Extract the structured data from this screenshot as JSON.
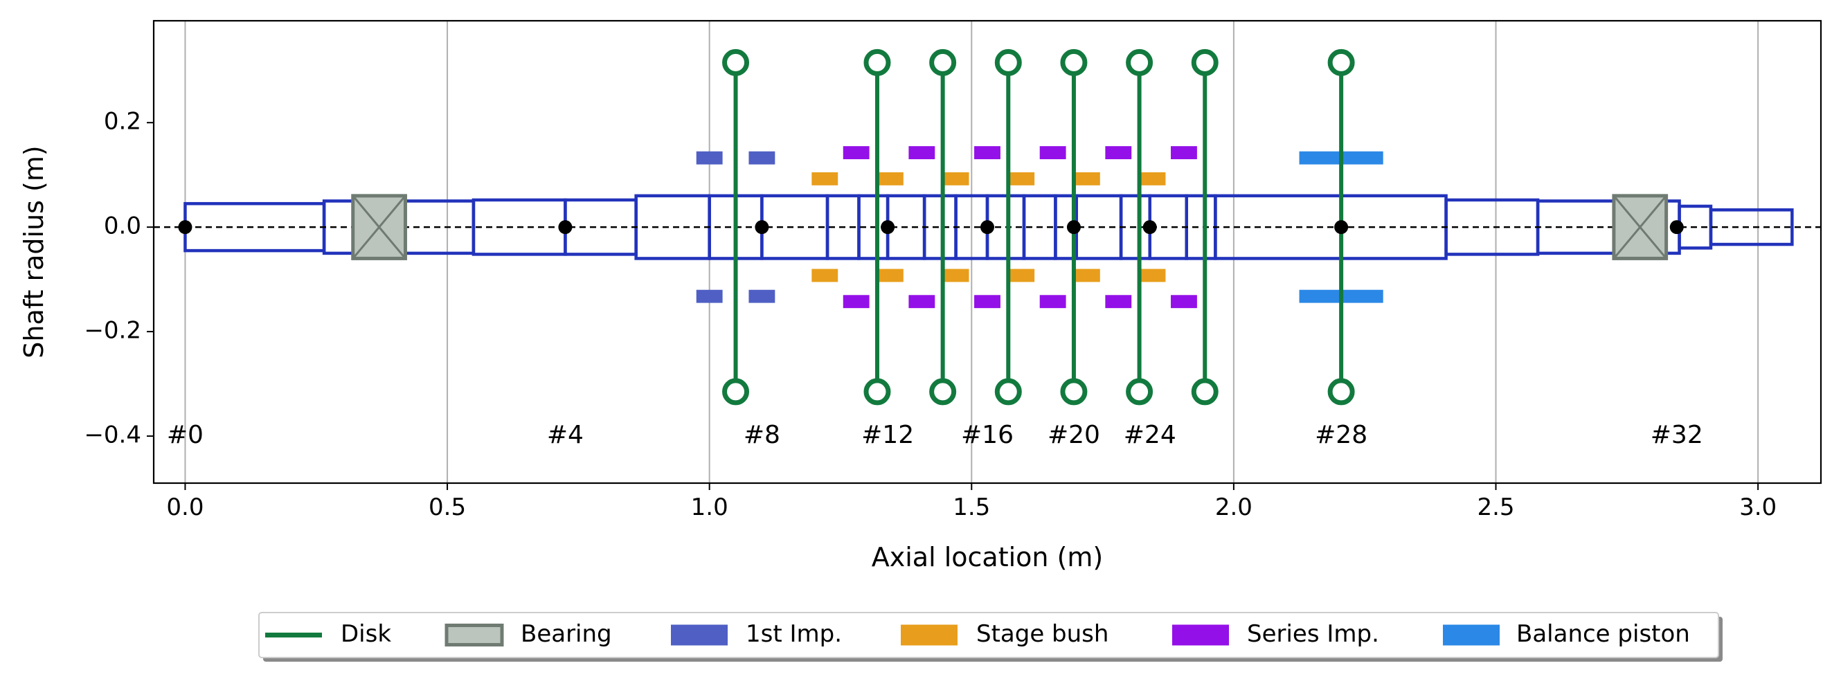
{
  "chart_data": {
    "type": "diagram",
    "xlabel": "Axial location (m)",
    "ylabel": "Shaft radius (m)",
    "xlim": [
      -0.06,
      3.12
    ],
    "ylim": [
      -0.49,
      0.395
    ],
    "x_ticks": [
      0.0,
      0.5,
      1.0,
      1.5,
      2.0,
      2.5,
      3.0
    ],
    "x_tick_labels": [
      "0.0",
      "0.5",
      "1.0",
      "1.5",
      "2.0",
      "2.5",
      "3.0"
    ],
    "y_ticks": [
      0.2,
      0.0,
      -0.2,
      -0.4
    ],
    "y_tick_labels": [
      "0.2",
      "0.0",
      "−0.2",
      "−0.4"
    ],
    "grid": "vertical",
    "colors": {
      "shaft": "#2233bb",
      "disk": "#127a3e",
      "bearing_fill": "#bcc4be",
      "bearing_edge": "#6f7b72",
      "first_imp": "#4f5fc4",
      "stage_bush": "#e89e1c",
      "series_imp": "#9410e8",
      "balance_piston": "#2b88e6",
      "node": "#000000"
    },
    "shaft_elements": [
      {
        "x0": 0.0,
        "x1": 0.265,
        "r": 0.045
      },
      {
        "x0": 0.265,
        "x1": 0.55,
        "r": 0.05
      },
      {
        "x0": 0.55,
        "x1": 0.725,
        "r": 0.052
      },
      {
        "x0": 0.725,
        "x1": 0.86,
        "r": 0.052
      },
      {
        "x0": 0.86,
        "x1": 1.0,
        "r": 0.06
      },
      {
        "x0": 1.0,
        "x1": 1.1,
        "r": 0.06
      },
      {
        "x0": 1.1,
        "x1": 1.225,
        "r": 0.06
      },
      {
        "x0": 1.225,
        "x1": 1.285,
        "r": 0.06
      },
      {
        "x0": 1.285,
        "x1": 1.34,
        "r": 0.06
      },
      {
        "x0": 1.34,
        "x1": 1.41,
        "r": 0.06
      },
      {
        "x0": 1.41,
        "x1": 1.47,
        "r": 0.06
      },
      {
        "x0": 1.47,
        "x1": 1.53,
        "r": 0.06
      },
      {
        "x0": 1.53,
        "x1": 1.6,
        "r": 0.06
      },
      {
        "x0": 1.6,
        "x1": 1.66,
        "r": 0.06
      },
      {
        "x0": 1.66,
        "x1": 1.7,
        "r": 0.06
      },
      {
        "x0": 1.7,
        "x1": 1.785,
        "r": 0.06
      },
      {
        "x0": 1.785,
        "x1": 1.84,
        "r": 0.06
      },
      {
        "x0": 1.84,
        "x1": 1.91,
        "r": 0.06
      },
      {
        "x0": 1.91,
        "x1": 1.965,
        "r": 0.06
      },
      {
        "x0": 1.965,
        "x1": 2.205,
        "r": 0.06
      },
      {
        "x0": 2.205,
        "x1": 2.405,
        "r": 0.06
      },
      {
        "x0": 2.405,
        "x1": 2.58,
        "r": 0.052
      },
      {
        "x0": 2.58,
        "x1": 2.85,
        "r": 0.05
      },
      {
        "x0": 2.85,
        "x1": 2.91,
        "r": 0.04
      },
      {
        "x0": 2.91,
        "x1": 3.065,
        "r": 0.033
      }
    ],
    "nodes": [
      0.0,
      0.725,
      1.1,
      1.34,
      1.53,
      1.695,
      1.84,
      2.205,
      2.845
    ],
    "node_labels": [
      {
        "x": 0.0,
        "text": "#0"
      },
      {
        "x": 0.725,
        "text": "#4"
      },
      {
        "x": 1.1,
        "text": "#8"
      },
      {
        "x": 1.34,
        "text": "#12"
      },
      {
        "x": 1.53,
        "text": "#16"
      },
      {
        "x": 1.695,
        "text": "#20"
      },
      {
        "x": 1.84,
        "text": "#24"
      },
      {
        "x": 2.205,
        "text": "#28"
      },
      {
        "x": 2.845,
        "text": "#32"
      }
    ],
    "node_label_y": -0.4,
    "bearings": [
      {
        "x0": 0.32,
        "x1": 0.42,
        "r": 0.06
      },
      {
        "x0": 2.725,
        "x1": 2.825,
        "r": 0.06
      }
    ],
    "disks": {
      "x": [
        1.05,
        1.32,
        1.445,
        1.57,
        1.695,
        1.82,
        1.945,
        2.205
      ],
      "r": 0.315
    },
    "first_imp": {
      "x": [
        1.0,
        1.1
      ],
      "r_inner": 0.12,
      "r_outer": 0.145,
      "width": 0.05
    },
    "stage_bush": {
      "x": [
        1.22,
        1.345,
        1.47,
        1.595,
        1.72,
        1.845
      ],
      "r_inner": 0.08,
      "r_outer": 0.105,
      "width": 0.05
    },
    "series_imp": {
      "x": [
        1.28,
        1.405,
        1.53,
        1.655,
        1.78,
        1.905
      ],
      "r_inner": 0.13,
      "r_outer": 0.155,
      "width": 0.05
    },
    "balance_piston": {
      "x0": 2.125,
      "x1": 2.285,
      "r_inner": 0.12,
      "r_outer": 0.145
    },
    "legend": {
      "placement": "bottom-center, below plot",
      "entries": [
        {
          "label": "Disk",
          "kind": "line",
          "color": "#127a3e"
        },
        {
          "label": "Bearing",
          "kind": "patch-outline",
          "color": "#bcc4be",
          "edge": "#6f7b72"
        },
        {
          "label": "1st Imp.",
          "kind": "patch",
          "color": "#4f5fc4"
        },
        {
          "label": "Stage bush",
          "kind": "patch",
          "color": "#e89e1c"
        },
        {
          "label": "Series Imp.",
          "kind": "patch",
          "color": "#9410e8"
        },
        {
          "label": "Balance piston",
          "kind": "patch",
          "color": "#2b88e6"
        }
      ]
    }
  }
}
